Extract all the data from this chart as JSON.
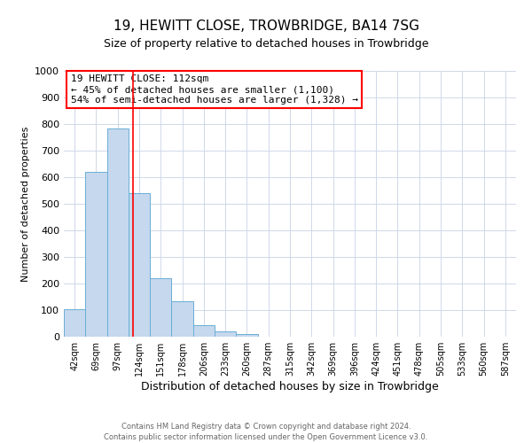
{
  "title": "19, HEWITT CLOSE, TROWBRIDGE, BA14 7SG",
  "subtitle": "Size of property relative to detached houses in Trowbridge",
  "xlabel": "Distribution of detached houses by size in Trowbridge",
  "ylabel": "Number of detached properties",
  "footer_line1": "Contains HM Land Registry data © Crown copyright and database right 2024.",
  "footer_line2": "Contains public sector information licensed under the Open Government Licence v3.0.",
  "bar_labels": [
    "42sqm",
    "69sqm",
    "97sqm",
    "124sqm",
    "151sqm",
    "178sqm",
    "206sqm",
    "233sqm",
    "260sqm",
    "287sqm",
    "315sqm",
    "342sqm",
    "369sqm",
    "396sqm",
    "424sqm",
    "451sqm",
    "478sqm",
    "505sqm",
    "533sqm",
    "560sqm",
    "587sqm"
  ],
  "bar_heights": [
    103,
    620,
    783,
    540,
    220,
    133,
    45,
    20,
    10,
    0,
    0,
    0,
    0,
    0,
    0,
    0,
    0,
    0,
    0,
    0,
    0
  ],
  "bar_color": "#c5d8ee",
  "bar_edge_color": "#6aaed6",
  "vline_x": 2.7,
  "vline_color": "red",
  "annotation_title": "19 HEWITT CLOSE: 112sqm",
  "annotation_line1": "← 45% of detached houses are smaller (1,100)",
  "annotation_line2": "54% of semi-detached houses are larger (1,328) →",
  "annotation_box_color": "red",
  "ylim": [
    0,
    1000
  ],
  "yticks": [
    0,
    100,
    200,
    300,
    400,
    500,
    600,
    700,
    800,
    900,
    1000
  ],
  "background_color": "#ffffff",
  "grid_color": "#d0d8e8",
  "title_fontsize": 11,
  "subtitle_fontsize": 9
}
